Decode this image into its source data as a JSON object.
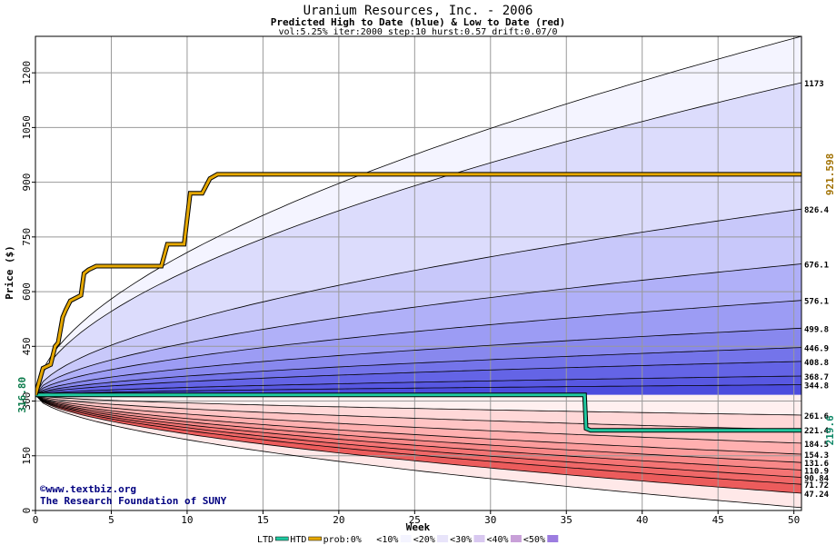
{
  "chart_data": {
    "type": "area",
    "title": "Uranium Resources, Inc. - 2006",
    "subtitle": "Predicted High to Date (blue) &  Low to Date (red)",
    "params": "vol:5.25% iter:2000 step:10 hurst:0.57 drift:0.07/0",
    "xlabel": "Week",
    "ylabel": "Price ($)",
    "xlim": [
      0,
      50.5
    ],
    "ylim": [
      0,
      1300
    ],
    "x_ticks": [
      0,
      5,
      10,
      15,
      20,
      25,
      30,
      35,
      40,
      45,
      50
    ],
    "y_ticks": [
      0,
      150,
      300,
      450,
      600,
      750,
      900,
      1050,
      1200
    ],
    "start_value": 316.8,
    "start_label": "316.80",
    "upper_percentile_ends": [
      1173,
      826.4,
      676.1,
      576.1,
      499.8,
      446.9,
      408.8,
      368.7,
      344.8
    ],
    "lower_percentile_ends": [
      261.6,
      221.4,
      184.5,
      154.3,
      131.6,
      110.9,
      90.84,
      71.72,
      47.24
    ],
    "end_labels": [
      "1173",
      "826.4",
      "676.1",
      "576.1",
      "499.8",
      "446.9",
      "408.8",
      "368.7",
      "344.8",
      "261.6",
      "221.4",
      "184.5",
      "154.3",
      "131.6",
      "110.9",
      "90.84",
      "71.72",
      "47.24"
    ],
    "outer_upper_end": 1300,
    "outer_lower_end": 8,
    "htd_series": {
      "name": "HTD",
      "color": "#e6a800",
      "end_label": "921.598",
      "points": [
        [
          0,
          316.8
        ],
        [
          0.5,
          390
        ],
        [
          1.0,
          400
        ],
        [
          1.3,
          450
        ],
        [
          1.5,
          460
        ],
        [
          1.8,
          530
        ],
        [
          2.0,
          550
        ],
        [
          2.3,
          575
        ],
        [
          3.0,
          590
        ],
        [
          3.2,
          650
        ],
        [
          3.5,
          660
        ],
        [
          4.0,
          670
        ],
        [
          8.3,
          670
        ],
        [
          8.7,
          730
        ],
        [
          9.8,
          730
        ],
        [
          10.2,
          870
        ],
        [
          11.0,
          870
        ],
        [
          11.5,
          910
        ],
        [
          12.0,
          921.598
        ],
        [
          50.5,
          921.598
        ]
      ]
    },
    "ltd_series": {
      "name": "LTD",
      "color": "#20c8a0",
      "end_label": "219.6",
      "points": [
        [
          0,
          316.8
        ],
        [
          36.2,
          316.8
        ],
        [
          36.3,
          225
        ],
        [
          36.6,
          219.6
        ],
        [
          50.5,
          219.6
        ]
      ]
    },
    "legend": [
      "LTD",
      "HTD",
      "prob:0%",
      "<10%",
      "<20%",
      "<30%",
      "<40%",
      "<50%"
    ],
    "colors": {
      "upper_bands": [
        "#f4f4ff",
        "#dcdcfc",
        "#c8c8fa",
        "#b0b0f8",
        "#9c9cf4",
        "#8888ee",
        "#7474ea",
        "#6464e6",
        "#5858e2",
        "#4c4cde"
      ],
      "lower_bands": [
        "#fff0f0",
        "#ffd8d8",
        "#ffc4c4",
        "#ffb0b0",
        "#fc9c9c",
        "#f88888",
        "#f47474",
        "#f06868",
        "#ec5c5c",
        "#ffe8e8"
      ],
      "grid": "#999999",
      "htd": "#e6a800",
      "ltd": "#20c8a0",
      "htd_label": "#a07000",
      "ltd_label": "#108868",
      "start_label": "#0a7a4a"
    }
  },
  "watermark": {
    "line1": "©www.textbiz.org",
    "line2": "The Research Foundation of SUNY"
  }
}
